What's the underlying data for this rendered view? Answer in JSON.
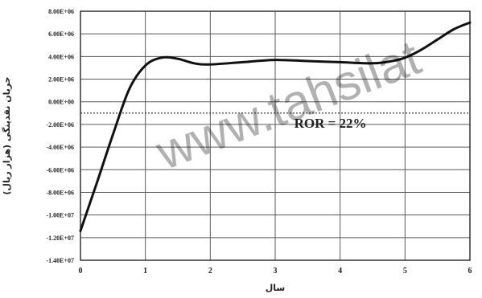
{
  "chart_data": {
    "type": "line",
    "title": "",
    "xlabel": "سال",
    "ylabel": "جریان نقدینگی (هزار ریال)",
    "xlim": [
      0,
      6
    ],
    "ylim": [
      -14000000,
      8000000
    ],
    "x_ticks": [
      0,
      1,
      2,
      3,
      4,
      5,
      6
    ],
    "x_tick_labels": [
      "0",
      "1",
      "2",
      "3",
      "4",
      "5",
      "6"
    ],
    "y_ticks": [
      8000000,
      6000000,
      4000000,
      2000000,
      0,
      -2000000,
      -4000000,
      -6000000,
      -8000000,
      -10000000,
      -12000000,
      -14000000
    ],
    "y_tick_labels": [
      "8.00E+06",
      "6.00E+06",
      "4.00E+06",
      "2.00E+06",
      "0.00E+00",
      "-2.00E+06",
      "-4.00E+06",
      "-6.00E+06",
      "-8.00E+06",
      "-1.00E+07",
      "-1.20E+07",
      "-1.40E+07"
    ],
    "grid": true,
    "series": [
      {
        "x": [
          0,
          0.25,
          0.5,
          0.75,
          1.0,
          1.25,
          1.5,
          1.75,
          2.0,
          2.5,
          3.0,
          3.5,
          4.0,
          4.5,
          4.8,
          5.0,
          5.25,
          5.5,
          5.75,
          6.0
        ],
        "y": [
          -11400000,
          -7200000,
          -2900000,
          1100000,
          3200000,
          3900000,
          3800000,
          3400000,
          3300000,
          3500000,
          3700000,
          3600000,
          3500000,
          3400000,
          3600000,
          3900000,
          4600000,
          5500000,
          6400000,
          7000000
        ]
      }
    ],
    "reference_line": {
      "y": -1000000,
      "style": "dashed"
    },
    "annotations": [
      {
        "text": "ROR = 22%",
        "x": 3.85,
        "y": -2000000
      }
    ]
  },
  "watermark": {
    "text": "www.tahsilat"
  }
}
